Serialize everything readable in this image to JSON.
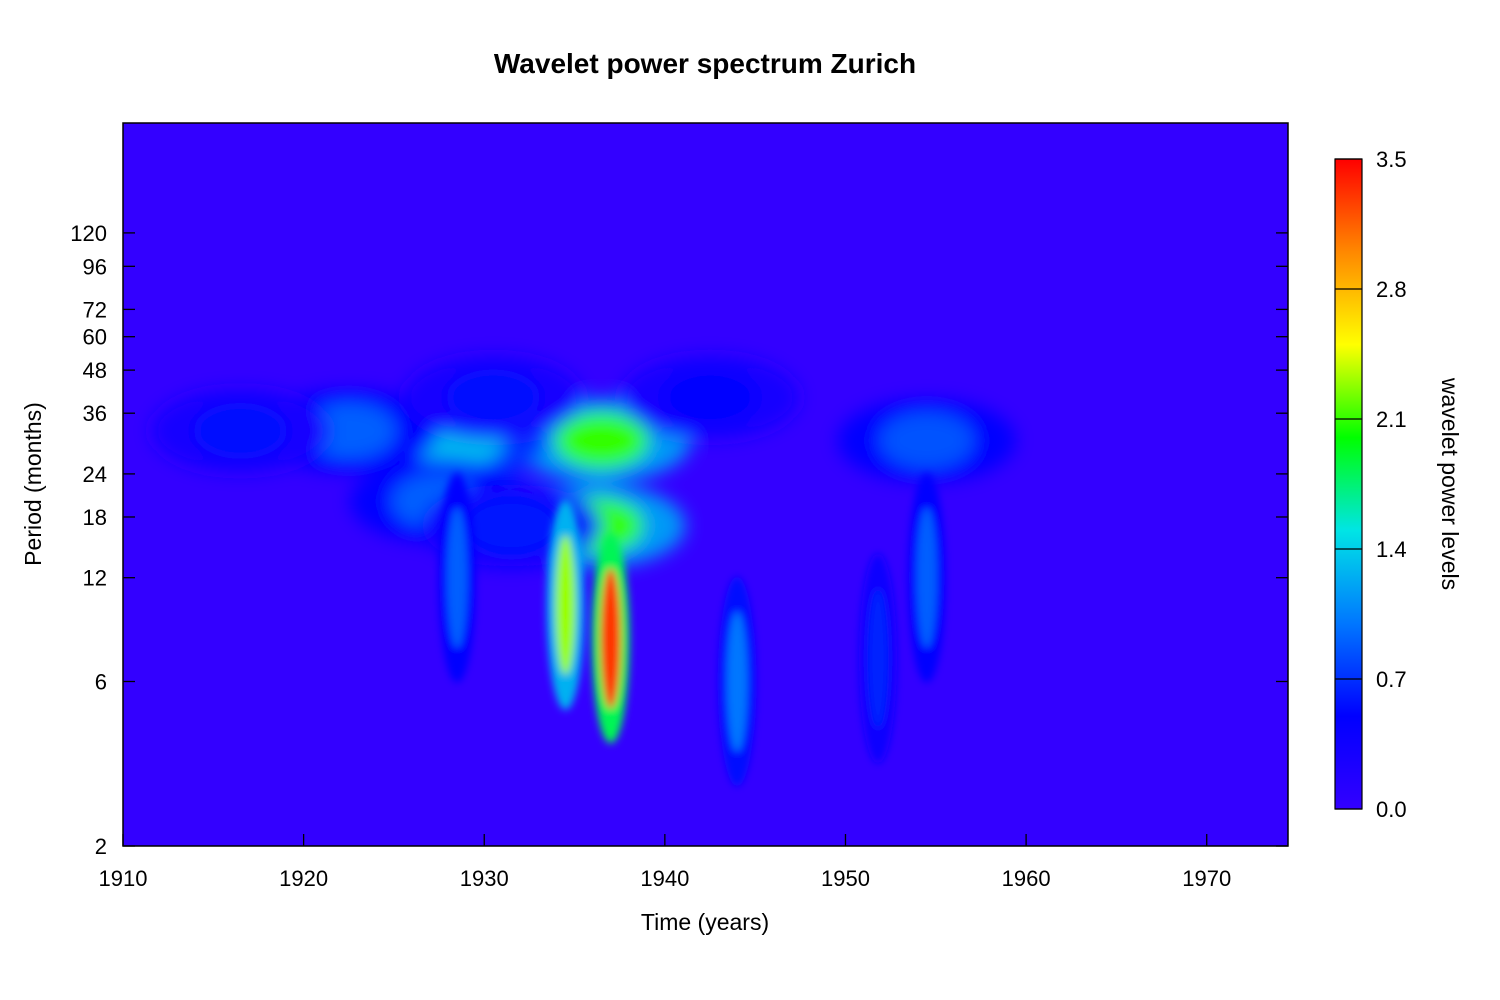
{
  "chart_data": {
    "type": "heatmap",
    "title": "Wavelet power spectrum Zurich",
    "xlabel": "Time (years)",
    "ylabel": "Period (months)",
    "x_ticks": [
      1910,
      1920,
      1930,
      1940,
      1950,
      1960,
      1970
    ],
    "x_range": [
      1910,
      1974.5
    ],
    "y_ticks": [
      2,
      6,
      12,
      18,
      24,
      36,
      48,
      60,
      72,
      96,
      120
    ],
    "y_scale": "log2",
    "y_range": [
      2,
      250
    ],
    "colorbar": {
      "label": "wavelet power levels",
      "ticks": [
        0.0,
        0.7,
        1.4,
        2.1,
        2.8,
        3.5
      ],
      "tick_labels": [
        "0.0",
        "0.7",
        "1.4",
        "2.1",
        "2.8",
        "3.5"
      ],
      "range": [
        0,
        3.5
      ],
      "colors": [
        "#3300ff",
        "#0000ff",
        "#0077ff",
        "#00e5e5",
        "#00ff00",
        "#ffff00",
        "#ff8800",
        "#ff0000"
      ]
    },
    "features": [
      {
        "x": 1936.5,
        "period": 30,
        "power": 2.1
      },
      {
        "x": 1928.5,
        "period": 30,
        "power": 1.3
      },
      {
        "x": 1922.5,
        "period": 32,
        "power": 0.9
      },
      {
        "x": 1916.5,
        "period": 32,
        "power": 0.55
      },
      {
        "x": 1930.5,
        "period": 40,
        "power": 0.55
      },
      {
        "x": 1942.5,
        "period": 40,
        "power": 0.5
      },
      {
        "x": 1954.5,
        "period": 30,
        "power": 0.85
      },
      {
        "x": 1936.2,
        "period": 17,
        "power": 2.1
      },
      {
        "x": 1927.5,
        "period": 20,
        "power": 0.9
      },
      {
        "x": 1931.5,
        "period": 17,
        "power": 0.6
      },
      {
        "x": 1928.5,
        "period": 12,
        "power": 0.9
      },
      {
        "x": 1934.5,
        "period": 10,
        "power": 2.3
      },
      {
        "x": 1937.0,
        "period": 8,
        "power": 3.3
      },
      {
        "x": 1944.0,
        "period": 6,
        "power": 1.0
      },
      {
        "x": 1954.5,
        "period": 12,
        "power": 0.9
      },
      {
        "x": 1951.8,
        "period": 7,
        "power": 0.65
      }
    ]
  }
}
